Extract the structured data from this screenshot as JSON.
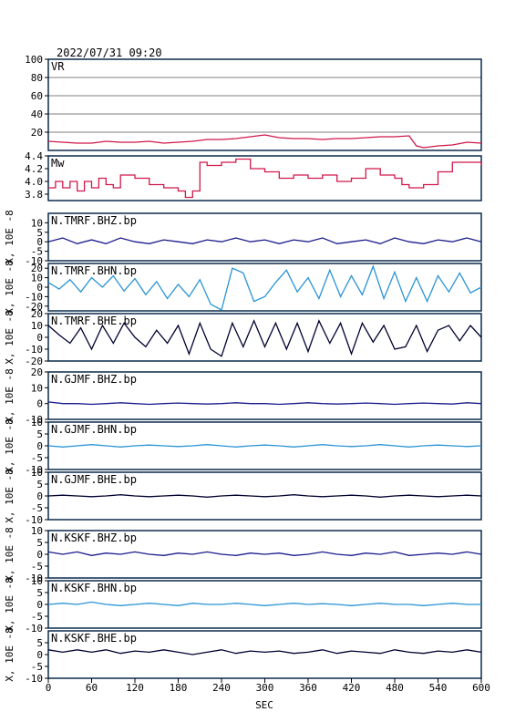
{
  "header": {
    "timestamp": "2022/07/31 09:20"
  },
  "colors": {
    "frame": "#0b2a4a",
    "vr": "#d0184a",
    "mw": "#d0184a",
    "bhz": "#1a1a8c",
    "bhn": "#2a94d4",
    "bhe": "#000030"
  },
  "chart_data": {
    "type": "line",
    "xlabel": "SEC",
    "x_ticks": [
      "0",
      "60",
      "120",
      "180",
      "240",
      "300",
      "360",
      "420",
      "480",
      "540",
      "600"
    ],
    "xlim": [
      0,
      600
    ],
    "panels": [
      {
        "name": "VR",
        "ylim": [
          0,
          100
        ],
        "y_ticks": [
          "100",
          "80",
          "60",
          "40",
          "20"
        ],
        "grid": true,
        "x": [
          0,
          20,
          40,
          60,
          80,
          100,
          120,
          140,
          160,
          180,
          200,
          220,
          240,
          260,
          280,
          300,
          320,
          340,
          360,
          380,
          400,
          420,
          440,
          460,
          480,
          500,
          510,
          520,
          540,
          560,
          580,
          600
        ],
        "values": [
          10,
          9,
          8,
          8,
          10,
          9,
          9,
          10,
          8,
          9,
          10,
          12,
          12,
          13,
          15,
          17,
          14,
          13,
          13,
          12,
          13,
          13,
          14,
          15,
          15,
          16,
          5,
          3,
          5,
          6,
          9,
          8
        ]
      },
      {
        "name": "Mw",
        "ylim": [
          3.7,
          4.4
        ],
        "y_ticks": [
          "4.4",
          "4.2",
          "4.0",
          "3.8"
        ],
        "grid": false,
        "x": [
          0,
          10,
          20,
          30,
          40,
          50,
          60,
          70,
          80,
          90,
          100,
          120,
          140,
          160,
          180,
          190,
          200,
          210,
          220,
          240,
          260,
          280,
          300,
          320,
          340,
          360,
          380,
          400,
          420,
          440,
          460,
          480,
          490,
          500,
          520,
          540,
          560,
          580,
          600
        ],
        "values": [
          3.9,
          4.0,
          3.9,
          4.0,
          3.85,
          4.0,
          3.9,
          4.05,
          3.95,
          3.9,
          4.1,
          4.05,
          3.95,
          3.9,
          3.85,
          3.75,
          3.85,
          4.3,
          4.25,
          4.3,
          4.35,
          4.2,
          4.15,
          4.05,
          4.1,
          4.05,
          4.1,
          4.0,
          4.05,
          4.2,
          4.1,
          4.05,
          3.95,
          3.9,
          3.95,
          4.15,
          4.3,
          4.3,
          4.25
        ]
      },
      {
        "name": "N.TMRF.BHZ.bp",
        "ylim": [
          -10,
          15
        ],
        "y_ticks": [
          "10",
          "5",
          "0",
          "-5",
          "-10"
        ],
        "ylabel": "X, 10E -8",
        "color_key": "bhz",
        "x": [
          0,
          20,
          40,
          60,
          80,
          100,
          120,
          140,
          160,
          180,
          200,
          220,
          240,
          260,
          280,
          300,
          320,
          340,
          360,
          380,
          400,
          420,
          440,
          460,
          480,
          500,
          520,
          540,
          560,
          580,
          600
        ],
        "values": [
          0,
          2,
          -1,
          1,
          -1,
          2,
          0,
          -1,
          1,
          0,
          -1,
          1,
          0,
          2,
          0,
          1,
          -1,
          1,
          0,
          2,
          -1,
          0,
          1,
          -1,
          2,
          0,
          -1,
          1,
          0,
          2,
          0
        ]
      },
      {
        "name": "N.TMRF.BHN.bp",
        "ylim": [
          -25,
          25
        ],
        "y_ticks": [
          "20",
          "10",
          "0",
          "-10",
          "-20"
        ],
        "ylabel": "X, 10E -8",
        "color_key": "bhn",
        "x": [
          0,
          15,
          30,
          45,
          60,
          75,
          90,
          105,
          120,
          135,
          150,
          165,
          180,
          195,
          210,
          225,
          240,
          255,
          270,
          285,
          300,
          315,
          330,
          345,
          360,
          375,
          390,
          405,
          420,
          435,
          450,
          465,
          480,
          495,
          510,
          525,
          540,
          555,
          570,
          585,
          600
        ],
        "values": [
          5,
          -2,
          8,
          -5,
          10,
          0,
          12,
          -4,
          9,
          -8,
          6,
          -12,
          3,
          -10,
          8,
          -18,
          -24,
          20,
          15,
          -15,
          -10,
          5,
          18,
          -5,
          10,
          -12,
          18,
          -10,
          12,
          -8,
          22,
          -12,
          16,
          -15,
          10,
          -15,
          12,
          -5,
          15,
          -6,
          0
        ]
      },
      {
        "name": "N.TMRF.BHE.bp",
        "ylim": [
          -20,
          20
        ],
        "y_ticks": [
          "20",
          "10",
          "0",
          "-10",
          "-20"
        ],
        "ylabel": "X, 10E -8",
        "color_key": "bhe",
        "x": [
          0,
          15,
          30,
          45,
          60,
          75,
          90,
          105,
          120,
          135,
          150,
          165,
          180,
          195,
          210,
          225,
          240,
          255,
          270,
          285,
          300,
          315,
          330,
          345,
          360,
          375,
          390,
          405,
          420,
          435,
          450,
          465,
          480,
          495,
          510,
          525,
          540,
          555,
          570,
          585,
          600
        ],
        "values": [
          10,
          2,
          -5,
          8,
          -10,
          10,
          -5,
          12,
          0,
          -8,
          6,
          -5,
          10,
          -14,
          12,
          -10,
          -16,
          12,
          -8,
          14,
          -8,
          12,
          -10,
          12,
          -12,
          14,
          -5,
          12,
          -14,
          12,
          -4,
          10,
          -10,
          -8,
          10,
          -12,
          6,
          10,
          -3,
          10,
          0
        ]
      },
      {
        "name": "N.GJMF.BHZ.bp",
        "ylim": [
          -10,
          20
        ],
        "y_ticks": [
          "20",
          "10",
          "0",
          "-10"
        ],
        "ylabel": "X, 10E -8",
        "color_key": "bhz",
        "x": [
          0,
          20,
          40,
          60,
          80,
          100,
          120,
          140,
          160,
          180,
          200,
          220,
          240,
          260,
          280,
          300,
          320,
          340,
          360,
          380,
          400,
          420,
          440,
          460,
          480,
          500,
          520,
          540,
          560,
          580,
          600
        ],
        "values": [
          1,
          0,
          0,
          -0.5,
          0,
          0.5,
          0,
          -0.5,
          0,
          0.3,
          0,
          -0.3,
          0,
          0.5,
          0,
          0,
          -0.5,
          0,
          0.5,
          0,
          -0.3,
          0,
          0.3,
          0,
          -0.5,
          0,
          0.3,
          0,
          -0.3,
          0.5,
          0
        ]
      },
      {
        "name": "N.GJMF.BHN.bp",
        "ylim": [
          -10,
          10
        ],
        "y_ticks": [
          "10",
          "5",
          "0",
          "-5",
          "-10"
        ],
        "ylabel": "X, 10E -8",
        "color_key": "bhn",
        "x": [
          0,
          20,
          40,
          60,
          80,
          100,
          120,
          140,
          160,
          180,
          200,
          220,
          240,
          260,
          280,
          300,
          320,
          340,
          360,
          380,
          400,
          420,
          440,
          460,
          480,
          500,
          520,
          540,
          560,
          580,
          600
        ],
        "values": [
          0,
          -0.5,
          0,
          0.5,
          0,
          -0.5,
          0,
          0.3,
          0,
          -0.3,
          0,
          0.5,
          0,
          -0.5,
          0,
          0.3,
          0,
          -0.5,
          0,
          0.5,
          0,
          -0.3,
          0,
          0.5,
          0,
          -0.5,
          0,
          0.3,
          0,
          -0.3,
          0
        ]
      },
      {
        "name": "N.GJMF.BHE.bp",
        "ylim": [
          -10,
          10
        ],
        "y_ticks": [
          "10",
          "5",
          "0",
          "-5",
          "-10"
        ],
        "ylabel": "X, 10E -8",
        "color_key": "bhe",
        "x": [
          0,
          20,
          40,
          60,
          80,
          100,
          120,
          140,
          160,
          180,
          200,
          220,
          240,
          260,
          280,
          300,
          320,
          340,
          360,
          380,
          400,
          420,
          440,
          460,
          480,
          500,
          520,
          540,
          560,
          580,
          600
        ],
        "values": [
          0,
          0.3,
          0,
          -0.3,
          0,
          0.5,
          0,
          -0.3,
          0,
          0.3,
          0,
          -0.5,
          0,
          0.3,
          0,
          -0.3,
          0,
          0.5,
          0,
          -0.3,
          0,
          0.3,
          0,
          -0.5,
          0,
          0.3,
          0,
          -0.3,
          0,
          0.3,
          0
        ]
      },
      {
        "name": "N.KSKF.BHZ.bp",
        "ylim": [
          -10,
          10
        ],
        "y_ticks": [
          "10",
          "5",
          "0",
          "-5",
          "-10"
        ],
        "ylabel": "X, 10E -8",
        "color_key": "bhz",
        "x": [
          0,
          20,
          40,
          60,
          80,
          100,
          120,
          140,
          160,
          180,
          200,
          220,
          240,
          260,
          280,
          300,
          320,
          340,
          360,
          380,
          400,
          420,
          440,
          460,
          480,
          500,
          520,
          540,
          560,
          580,
          600
        ],
        "values": [
          1,
          0,
          1,
          -0.5,
          0.5,
          0,
          1,
          0,
          -0.5,
          0.5,
          0,
          1,
          0,
          -0.5,
          0.5,
          0,
          0.5,
          -0.5,
          0,
          1,
          0,
          -0.5,
          0.5,
          0,
          1,
          -0.5,
          0,
          0.5,
          0,
          1,
          0
        ]
      },
      {
        "name": "N.KSKF.BHN.bp",
        "ylim": [
          -10,
          10
        ],
        "y_ticks": [
          "10",
          "5",
          "0",
          "-5",
          "-10"
        ],
        "ylabel": "X, 10E -8",
        "color_key": "bhn",
        "x": [
          0,
          20,
          40,
          60,
          80,
          100,
          120,
          140,
          160,
          180,
          200,
          220,
          240,
          260,
          280,
          300,
          320,
          340,
          360,
          380,
          400,
          420,
          440,
          460,
          480,
          500,
          520,
          540,
          560,
          580,
          600
        ],
        "values": [
          0,
          0.5,
          0,
          1,
          0,
          -0.5,
          0,
          0.5,
          0,
          -0.5,
          0.5,
          0,
          0,
          0.5,
          0,
          -0.5,
          0,
          0.5,
          0,
          0.3,
          0,
          -0.5,
          0,
          0.5,
          0,
          0,
          -0.5,
          0,
          0.5,
          0,
          0
        ]
      },
      {
        "name": "N.KSKF.BHE.bp",
        "ylim": [
          -10,
          10
        ],
        "y_ticks": [
          "5",
          "0",
          "-5",
          "-10"
        ],
        "ylabel": "X, 10E -8",
        "color_key": "bhe",
        "x": [
          0,
          20,
          40,
          60,
          80,
          100,
          120,
          140,
          160,
          180,
          200,
          220,
          240,
          260,
          280,
          300,
          320,
          340,
          360,
          380,
          400,
          420,
          440,
          460,
          480,
          500,
          520,
          540,
          560,
          580,
          600
        ],
        "values": [
          2,
          1,
          2,
          1,
          2,
          0.5,
          1.5,
          1,
          2,
          1,
          0,
          1,
          2,
          0.5,
          1.5,
          1,
          1.5,
          0.5,
          1,
          2,
          0.5,
          1.5,
          1,
          0.5,
          2,
          1,
          0.5,
          1.5,
          1,
          2,
          1
        ]
      }
    ]
  }
}
